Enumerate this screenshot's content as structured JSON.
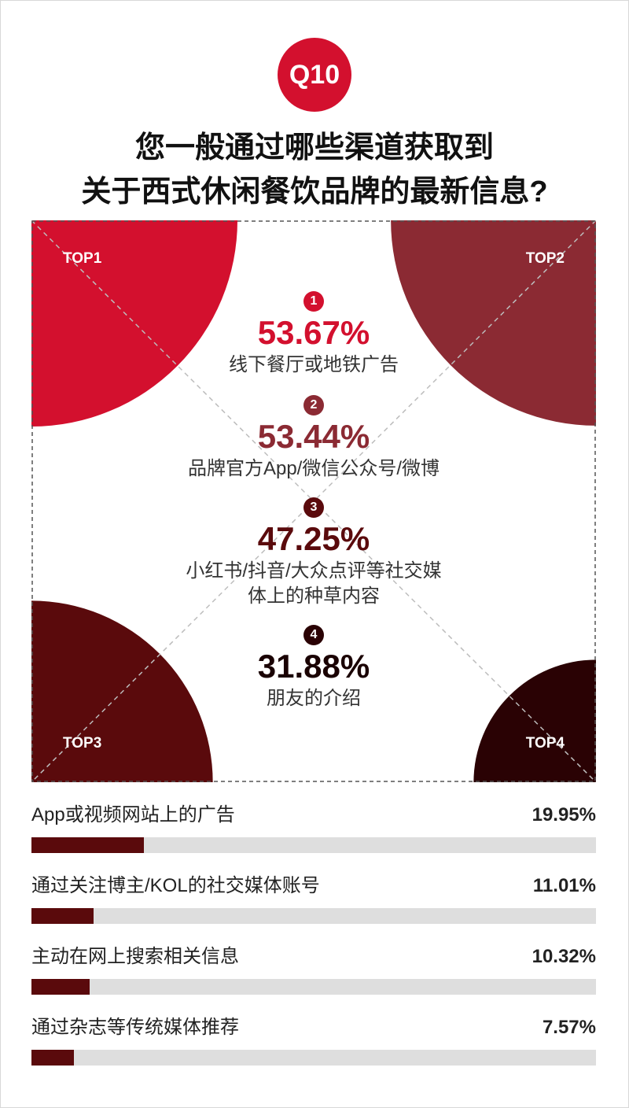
{
  "badge": "Q10",
  "title_line1": "您一般通过哪些渠道获取到",
  "title_line2": "关于西式休闲餐饮品牌的最新信息?",
  "colors": {
    "top1": "#d3102e",
    "top2": "#8b2a33",
    "top3": "#5a0a0c",
    "top4": "#2a0204",
    "bar": "#5a0a0c",
    "track": "#dedede"
  },
  "chart_data": [
    {
      "type": "table",
      "title": "",
      "items": [
        {
          "label": "TOP1",
          "rank": "1",
          "value": 53.67,
          "value_text": "53.67%",
          "text": [
            "线下餐厅或地铁广告"
          ]
        },
        {
          "label": "TOP2",
          "rank": "2",
          "value": 53.44,
          "value_text": "53.44%",
          "text": [
            "品牌官方App/微信公众号/微博"
          ]
        },
        {
          "label": "TOP3",
          "rank": "3",
          "value": 47.25,
          "value_text": "47.25%",
          "text": [
            "小红书/抖音/大众点评等社交媒",
            "体上的种草内容"
          ]
        },
        {
          "label": "TOP4",
          "rank": "4",
          "value": 31.88,
          "value_text": "31.88%",
          "text": [
            "朋友的介绍"
          ]
        }
      ]
    },
    {
      "type": "bar",
      "orientation": "horizontal",
      "categories": [
        "App或视频网站上的广告",
        "通过关注博主/KOL的社交媒体账号",
        "主动在网上搜索相关信息",
        "通过杂志等传统媒体推荐"
      ],
      "values": [
        19.95,
        11.01,
        10.32,
        7.57
      ],
      "value_labels": [
        "19.95%",
        "11.01%",
        "10.32%",
        "7.57%"
      ],
      "xlim": [
        0,
        100
      ]
    }
  ]
}
